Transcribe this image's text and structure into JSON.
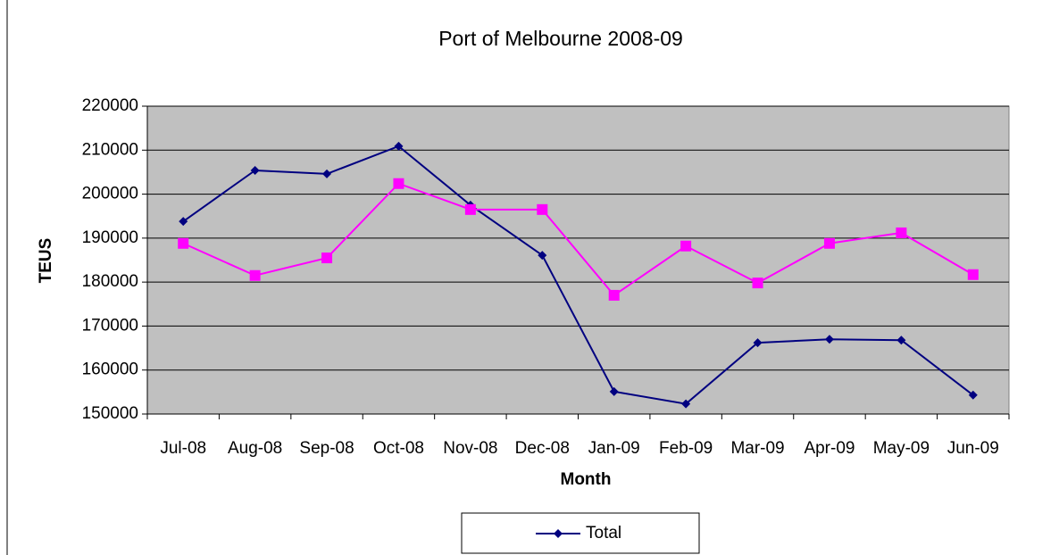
{
  "chart_data": {
    "type": "line",
    "title": "Port of Melbourne 2008-09",
    "x_label": "Month",
    "y_label": "TEUS",
    "categories": [
      "Jul-08",
      "Aug-08",
      "Sep-08",
      "Oct-08",
      "Nov-08",
      "Dec-08",
      "Jan-09",
      "Feb-09",
      "Mar-09",
      "Apr-09",
      "May-09",
      "Jun-09"
    ],
    "series": [
      {
        "name": "Total",
        "color": "#000080",
        "marker": "diamond",
        "values": [
          193800,
          205400,
          204600,
          210900,
          197500,
          186100,
          155100,
          152300,
          166200,
          167000,
          166800,
          154300
        ]
      },
      {
        "color": "#ff00ff",
        "marker": "square",
        "values": [
          188800,
          181500,
          185500,
          202400,
          196500,
          196500,
          177000,
          188200,
          179800,
          188800,
          191200,
          181700
        ]
      }
    ],
    "ylim": [
      150000,
      220000
    ],
    "yticks": [
      150000,
      160000,
      170000,
      180000,
      190000,
      200000,
      210000,
      220000
    ],
    "grid": true,
    "legend": "bottom",
    "plot_background": "#c0c0c0"
  }
}
